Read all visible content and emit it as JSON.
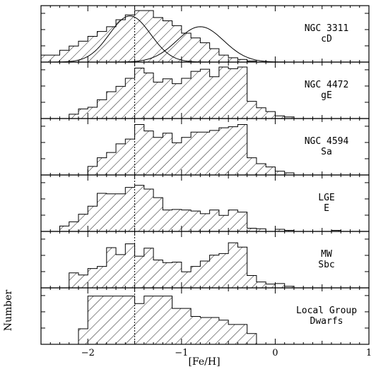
{
  "chart_data": {
    "type": "histogram",
    "xlabel": "[Fe/H]",
    "ylabel": "Number",
    "xlim": [
      -2.5,
      1.0
    ],
    "x_ticks": [
      {
        "value": -2,
        "label": "−2"
      },
      {
        "value": -1,
        "label": "−1"
      },
      {
        "value": 0,
        "label": "0"
      },
      {
        "value": 1,
        "label": "1"
      }
    ],
    "reference_line_x": -1.5,
    "bin_width": 0.1,
    "hatch": "diagonal",
    "panels": [
      {
        "name": "NGC 3311",
        "label_lines": [
          "NGC 3311",
          "cD"
        ],
        "ymax": 1.0,
        "bins_start": -2.5,
        "counts": [
          0.13,
          0.13,
          0.22,
          0.3,
          0.39,
          0.48,
          0.57,
          0.66,
          0.79,
          0.88,
          0.96,
          0.96,
          0.83,
          0.77,
          0.68,
          0.54,
          0.45,
          0.36,
          0.25,
          0.13,
          0.08,
          0.05,
          0.02,
          0.0,
          0.0,
          0.0,
          0.0,
          0.0,
          0.0,
          0.0,
          0.0,
          0.0,
          0.0,
          0.0,
          0.0
        ],
        "gaussians": [
          {
            "mu": -1.55,
            "sigma": 0.22,
            "amp": 0.86
          },
          {
            "mu": -0.8,
            "sigma": 0.25,
            "amp": 0.66
          }
        ]
      },
      {
        "name": "NGC 4472",
        "label_lines": [
          "NGC 4472",
          "gE"
        ],
        "ymax": 1.0,
        "bins_start": -2.5,
        "counts": [
          0.0,
          0.0,
          0.0,
          0.08,
          0.18,
          0.21,
          0.35,
          0.5,
          0.6,
          0.75,
          0.94,
          0.85,
          0.68,
          0.74,
          0.65,
          0.75,
          0.88,
          0.92,
          0.78,
          0.96,
          0.93,
          0.96,
          0.32,
          0.2,
          0.13,
          0.05,
          0.03,
          0.0,
          0.0,
          0.0,
          0.0,
          0.0,
          0.0,
          0.0,
          0.0
        ]
      },
      {
        "name": "NGC 4594",
        "label_lines": [
          "NGC 4594",
          "Sa"
        ],
        "ymax": 1.0,
        "bins_start": -2.5,
        "counts": [
          0.0,
          0.0,
          0.0,
          0.0,
          0.0,
          0.16,
          0.32,
          0.42,
          0.58,
          0.67,
          0.94,
          0.82,
          0.7,
          0.78,
          0.6,
          0.7,
          0.8,
          0.8,
          0.83,
          0.88,
          0.9,
          0.94,
          0.32,
          0.21,
          0.15,
          0.07,
          0.04,
          0.0,
          0.0,
          0.0,
          0.0,
          0.0,
          0.0,
          0.0,
          0.0
        ]
      },
      {
        "name": "LGE",
        "label_lines": [
          "LGE",
          "E"
        ],
        "ymax": 1.0,
        "bins_start": -2.5,
        "counts": [
          0.0,
          0.0,
          0.1,
          0.18,
          0.32,
          0.47,
          0.71,
          0.7,
          0.7,
          0.82,
          0.86,
          0.79,
          0.63,
          0.4,
          0.41,
          0.4,
          0.38,
          0.33,
          0.4,
          0.3,
          0.4,
          0.36,
          0.06,
          0.05,
          0.0,
          0.04,
          0.02,
          0.0,
          0.0,
          0.0,
          0.0,
          0.02,
          0.0,
          0.0,
          0.0
        ]
      },
      {
        "name": "MW",
        "label_lines": [
          "MW",
          "Sbc"
        ],
        "ymax": 1.0,
        "bins_start": -2.5,
        "counts": [
          0.0,
          0.0,
          0.0,
          0.28,
          0.24,
          0.36,
          0.4,
          0.75,
          0.62,
          0.82,
          0.59,
          0.74,
          0.52,
          0.47,
          0.48,
          0.3,
          0.4,
          0.5,
          0.61,
          0.64,
          0.84,
          0.76,
          0.23,
          0.11,
          0.07,
          0.08,
          0.03,
          0.0,
          0.0,
          0.0,
          0.0,
          0.0,
          0.0,
          0.0,
          0.0
        ]
      },
      {
        "name": "Local Group Dwarfs",
        "label_lines": [
          "Local Group",
          "Dwarfs"
        ],
        "ymax": 1.0,
        "bins_start": -2.5,
        "counts": [
          0.0,
          0.0,
          0.0,
          0.0,
          0.29,
          0.9,
          0.9,
          0.9,
          0.9,
          0.9,
          0.76,
          0.9,
          0.9,
          0.9,
          0.67,
          0.67,
          0.52,
          0.5,
          0.5,
          0.45,
          0.37,
          0.37,
          0.2,
          0.0,
          0.0,
          0.0,
          0.0,
          0.0,
          0.0,
          0.0,
          0.0,
          0.0,
          0.0,
          0.0,
          0.0
        ]
      }
    ]
  }
}
